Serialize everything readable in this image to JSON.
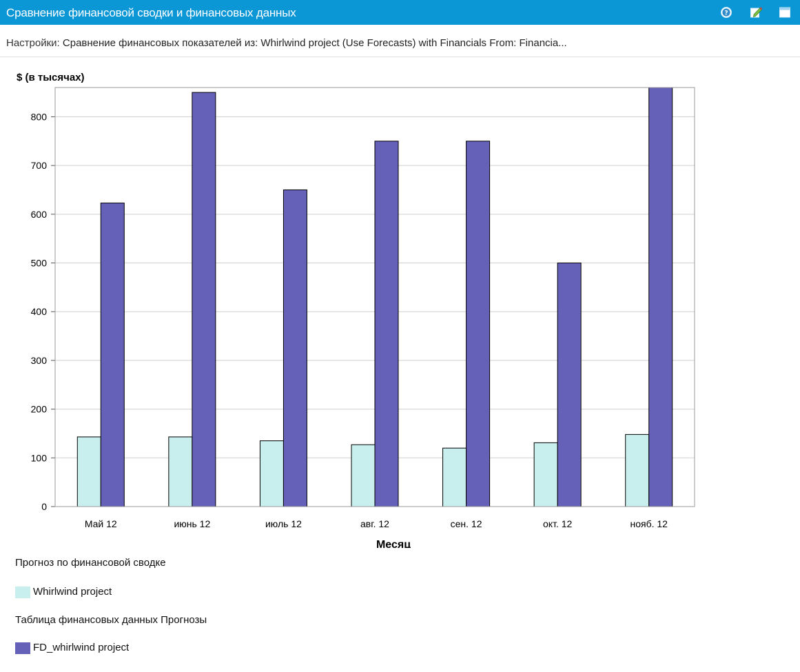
{
  "header": {
    "title": "Сравнение финансовой сводки и финансовых данных",
    "icons": [
      "help-icon",
      "edit-icon",
      "maximize-icon"
    ],
    "color": "#0b96d6"
  },
  "settings": {
    "label": "Настройки:",
    "value": "Сравнение финансовых показателей из:  Whirlwind project (Use Forecasts) with Financials From: Financia..."
  },
  "chart_data": {
    "type": "bar",
    "ylabel": "$ (в тысячах)",
    "xlabel": "Месяц",
    "categories": [
      "Май 12",
      "июнь 12",
      "июль 12",
      "авг. 12",
      "сен. 12",
      "окт. 12",
      "нояб. 12"
    ],
    "ylim": [
      0,
      860
    ],
    "yticks": [
      0,
      100,
      200,
      300,
      400,
      500,
      600,
      700,
      800
    ],
    "grid": true,
    "legend_position": "bottom",
    "series": [
      {
        "name": "Whirlwind project",
        "group": "Прогноз по финансовой сводке",
        "color": "#c8eeee",
        "values": [
          143,
          143,
          135,
          127,
          120,
          131,
          148
        ]
      },
      {
        "name": "FD_whirlwind project",
        "group": "Таблица финансовых данных Прогнозы",
        "color": "#6661b8",
        "values": [
          623,
          850,
          650,
          750,
          750,
          500,
          860
        ]
      }
    ]
  }
}
